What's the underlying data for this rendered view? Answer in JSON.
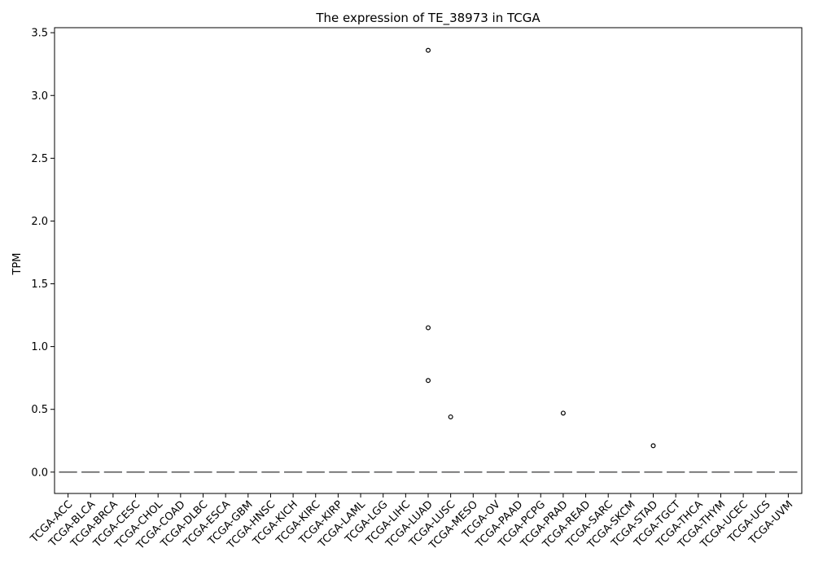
{
  "chart_data": {
    "type": "box",
    "title": "The expression of TE_38973 in TCGA",
    "xlabel": "",
    "ylabel": "TPM",
    "ylim": [
      -0.17,
      3.54
    ],
    "yticks": [
      "0.0",
      "0.5",
      "1.0",
      "1.5",
      "2.0",
      "2.5",
      "3.0",
      "3.5"
    ],
    "grid": false,
    "categories": [
      "TCGA-ACC",
      "TCGA-BLCA",
      "TCGA-BRCA",
      "TCGA-CESC",
      "TCGA-CHOL",
      "TCGA-COAD",
      "TCGA-DLBC",
      "TCGA-ESCA",
      "TCGA-GBM",
      "TCGA-HNSC",
      "TCGA-KICH",
      "TCGA-KIRC",
      "TCGA-KIRP",
      "TCGA-LAML",
      "TCGA-LGG",
      "TCGA-LIHC",
      "TCGA-LUAD",
      "TCGA-LUSC",
      "TCGA-MESO",
      "TCGA-OV",
      "TCGA-PAAD",
      "TCGA-PCPG",
      "TCGA-PRAD",
      "TCGA-READ",
      "TCGA-SARC",
      "TCGA-SKCM",
      "TCGA-STAD",
      "TCGA-TGCT",
      "TCGA-THCA",
      "TCGA-THYM",
      "TCGA-UCEC",
      "TCGA-UCS",
      "TCGA-UVM"
    ],
    "median": 0,
    "outliers": [
      {
        "category": "TCGA-LUAD",
        "value": 3.36
      },
      {
        "category": "TCGA-LUAD",
        "value": 1.15
      },
      {
        "category": "TCGA-LUAD",
        "value": 0.73
      },
      {
        "category": "TCGA-LUSC",
        "value": 0.44
      },
      {
        "category": "TCGA-PRAD",
        "value": 0.47
      },
      {
        "category": "TCGA-STAD",
        "value": 0.21
      }
    ],
    "colors": {
      "box": "#3b6ea5",
      "median_line": "#555555",
      "outlier_edge": "#000000"
    }
  }
}
